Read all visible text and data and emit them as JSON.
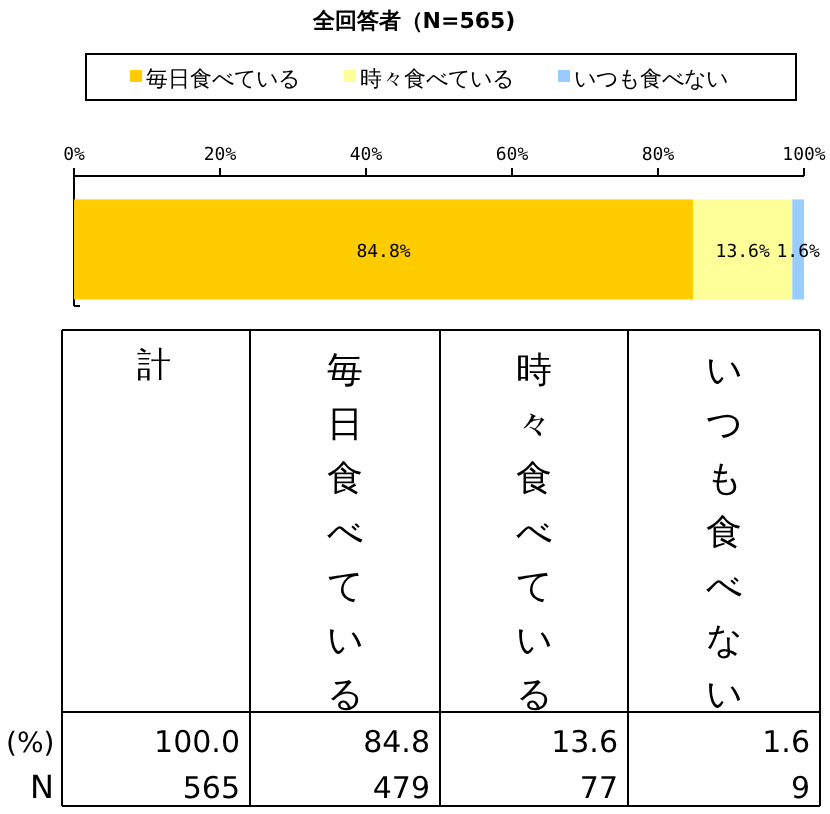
{
  "chart_data": {
    "type": "bar",
    "orientation": "horizontal",
    "stacked": true,
    "title": "全回答者（N=565)",
    "categories": [
      null
    ],
    "series": [
      {
        "name": "毎日食べている",
        "color": "#ffcc00",
        "values": [
          84.8
        ],
        "value_labels": [
          "84.8%"
        ]
      },
      {
        "name": "時々食べている",
        "color": "#ffff99",
        "values": [
          13.6
        ],
        "value_labels": [
          "13.6%"
        ]
      },
      {
        "name": "いつも食べない",
        "color": "#99ccff",
        "values": [
          1.6
        ],
        "value_labels": [
          "1.6%"
        ]
      }
    ],
    "xlim": [
      0,
      100
    ],
    "xticks": [
      {
        "value": 0,
        "label": "0%"
      },
      {
        "value": 20,
        "label": "20%"
      },
      {
        "value": 40,
        "label": "40%"
      },
      {
        "value": 60,
        "label": "60%"
      },
      {
        "value": 80,
        "label": "80%"
      },
      {
        "value": 100,
        "label": "100%"
      }
    ],
    "legend": "top",
    "annotations": [
      "計",
      "(%)",
      "N",
      "100.0",
      "84.8",
      "13.6",
      "1.6",
      "565",
      "479",
      "77",
      "9"
    ]
  }
}
